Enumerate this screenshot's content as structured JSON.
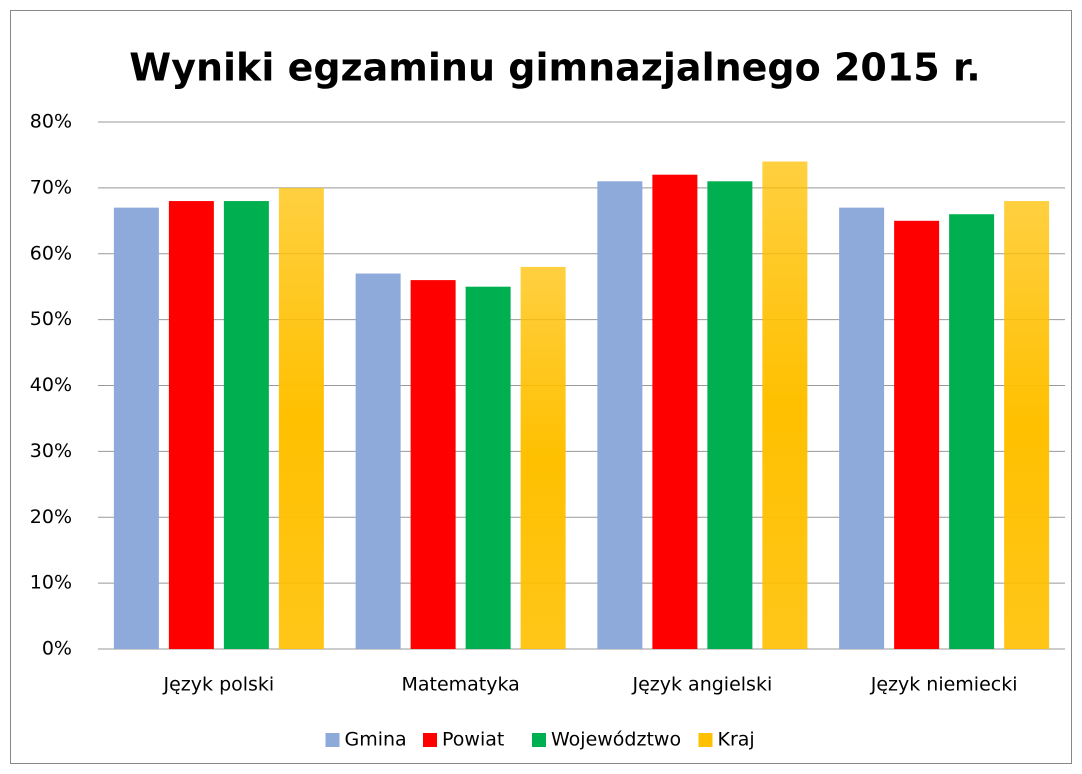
{
  "chart_data": {
    "type": "bar",
    "title": "Wyniki egzaminu gimnazjalnego 2015 r.",
    "categories": [
      "Język polski",
      "Matematyka",
      "Język angielski",
      "Język niemiecki"
    ],
    "series": [
      {
        "name": "Gmina",
        "color": "#8eaadb",
        "values": [
          67,
          57,
          71,
          67
        ]
      },
      {
        "name": "Powiat",
        "color": "#ff0000",
        "values": [
          68,
          56,
          72,
          65
        ]
      },
      {
        "name": "Województwo",
        "color": "#00b050",
        "values": [
          68,
          55,
          71,
          66
        ]
      },
      {
        "name": "Kraj",
        "color": "#ffc000",
        "values": [
          70,
          58,
          74,
          68
        ]
      }
    ],
    "ylim": [
      0,
      80
    ],
    "yticks": [
      {
        "value": 0,
        "label": "0%"
      },
      {
        "value": 10,
        "label": "10%"
      },
      {
        "value": 20,
        "label": "20%"
      },
      {
        "value": 30,
        "label": "30%"
      },
      {
        "value": 40,
        "label": "40%"
      },
      {
        "value": 50,
        "label": "50%"
      },
      {
        "value": 60,
        "label": "60%"
      },
      {
        "value": 70,
        "label": "70%"
      },
      {
        "value": 80,
        "label": "80%"
      }
    ],
    "grid": true,
    "legend": "bottom"
  }
}
